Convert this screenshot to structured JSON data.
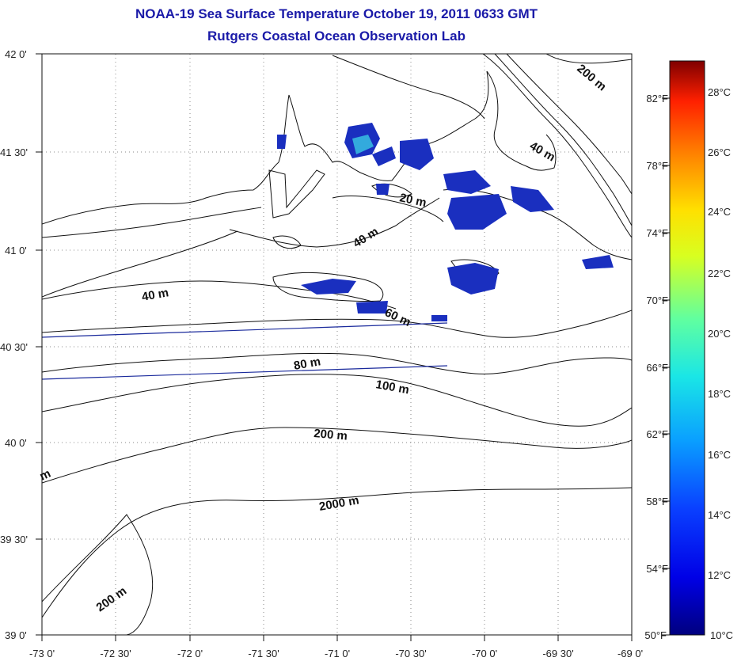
{
  "title": "NOAA-19 Sea Surface Temperature October 19, 2011 0633 GMT",
  "subtitle": "Rutgers Coastal Ocean Observation Lab",
  "axes": {
    "latitude_labels": [
      "42 0'",
      "41 30'",
      "41 0'",
      "40 30'",
      "40 0'",
      "39 30'",
      "39 0'"
    ],
    "longitude_labels": [
      "-73 0'",
      "-72 30'",
      "-72 0'",
      "-71 30'",
      "-71 0'",
      "-70 30'",
      "-70 0'",
      "-69 30'",
      "-69 0'"
    ]
  },
  "fahrenheit_labels": [
    "82°F",
    "78°F",
    "74°F",
    "70°F",
    "66°F",
    "62°F",
    "58°F",
    "54°F",
    "50°F"
  ],
  "colorbar": {
    "labels": [
      "28°C",
      "26°C",
      "24°C",
      "22°C",
      "20°C",
      "18°C",
      "16°C",
      "14°C",
      "12°C",
      "10°C"
    ],
    "min_c": 10,
    "max_c": 29.5
  },
  "contour_labels": [
    "200 m",
    "40 m",
    "20 m",
    "40 m",
    "40 m",
    "60 m",
    "80 m",
    "100 m",
    "200 m",
    "2000 m",
    "200 m",
    "m"
  ],
  "colors": {
    "title": "#1a1aa8",
    "sst_patch_dark": "#1a2fbf",
    "sst_patch_light": "#33aadd",
    "transect_line": "#1a2a9c"
  }
}
